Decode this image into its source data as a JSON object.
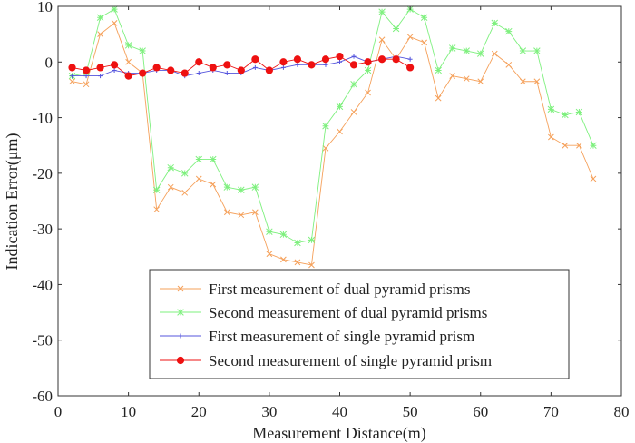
{
  "chart_data": {
    "type": "line",
    "title": "",
    "xlabel": "Measurement Distance(m)",
    "ylabel": "Indication Error(μm)",
    "xlim": [
      0,
      80
    ],
    "ylim": [
      -60,
      10
    ],
    "x_ticks": [
      0,
      10,
      20,
      30,
      40,
      50,
      60,
      70,
      80
    ],
    "y_ticks": [
      10,
      0,
      -10,
      -20,
      -30,
      -40,
      -50,
      -60
    ],
    "x_tick_labels": [
      "0",
      "10",
      "20",
      "30",
      "40",
      "50",
      "60",
      "70",
      "80"
    ],
    "y_tick_labels": [
      "10",
      "0",
      "-10",
      "-20",
      "-30",
      "-40",
      "-50",
      "-60"
    ],
    "grid": false,
    "legend_position": "bottom-center",
    "series": [
      {
        "name": "First measurement of dual pyramid prisms",
        "color": "#f5a05a",
        "marker": "x",
        "x": [
          2,
          4,
          6,
          8,
          10,
          12,
          14,
          16,
          18,
          20,
          22,
          24,
          26,
          28,
          30,
          32,
          34,
          36,
          38,
          40,
          42,
          44,
          46,
          48,
          50,
          52,
          54,
          56,
          58,
          60,
          62,
          64,
          66,
          68,
          70,
          72,
          74,
          76
        ],
        "y": [
          -3.5,
          -4,
          5,
          7,
          0,
          -2,
          -26.5,
          -22.5,
          -23.5,
          -21,
          -22,
          -27,
          -27.5,
          -27,
          -34.5,
          -35.5,
          -36,
          -36.5,
          -15.5,
          -12.5,
          -9,
          -5.5,
          4,
          0.5,
          4.5,
          3.5,
          -6.5,
          -2.5,
          -3,
          -3.5,
          1.5,
          -0.5,
          -3.5,
          -3.5,
          -13.5,
          -15,
          -15,
          -21
        ]
      },
      {
        "name": "Second measurement of dual pyramid prisms",
        "color": "#7ef07e",
        "marker": "*",
        "x": [
          2,
          4,
          6,
          8,
          10,
          12,
          14,
          16,
          18,
          20,
          22,
          24,
          26,
          28,
          30,
          32,
          34,
          36,
          38,
          40,
          42,
          44,
          46,
          48,
          50,
          52,
          54,
          56,
          58,
          60,
          62,
          64,
          66,
          68,
          70,
          72,
          74,
          76
        ],
        "y": [
          -2.5,
          -2,
          8,
          9.5,
          3,
          2,
          -23,
          -19,
          -20,
          -17.5,
          -17.5,
          -22.5,
          -23,
          -22.5,
          -30.5,
          -31,
          -32.5,
          -32,
          -11.5,
          -8,
          -4,
          -1.5,
          9,
          6,
          9.5,
          8,
          -1.5,
          2.5,
          2,
          1.5,
          7,
          5.5,
          2,
          2,
          -8.5,
          -9.5,
          -9,
          -15
        ]
      },
      {
        "name": "First measurement of single pyramid prism",
        "color": "#5555dd",
        "marker": "+",
        "x": [
          2,
          4,
          6,
          8,
          10,
          12,
          14,
          16,
          18,
          20,
          22,
          24,
          26,
          28,
          30,
          32,
          34,
          36,
          38,
          40,
          42,
          44,
          46,
          48,
          50
        ],
        "y": [
          -2.5,
          -2.5,
          -2.5,
          -1.5,
          -2,
          -2,
          -1.5,
          -1.5,
          -2.5,
          -2,
          -1.5,
          -2,
          -2,
          -1,
          -1.5,
          -1,
          -0.5,
          -0.5,
          -0.5,
          0,
          1,
          0,
          0.5,
          1,
          0.5
        ]
      },
      {
        "name": "Second measurement of single pyramid prism",
        "color": "#ee1111",
        "marker": "o",
        "x": [
          2,
          4,
          6,
          8,
          10,
          12,
          14,
          16,
          18,
          20,
          22,
          24,
          26,
          28,
          30,
          32,
          34,
          36,
          38,
          40,
          42,
          44,
          46,
          48,
          50
        ],
        "y": [
          -1,
          -1.5,
          -1,
          -0.5,
          -2.5,
          -2,
          -1,
          -1.5,
          -2,
          0,
          -1,
          -0.5,
          -1.5,
          0.5,
          -1.5,
          0,
          0.5,
          -0.5,
          0.5,
          1,
          -0.5,
          0,
          0.5,
          0.5,
          -1
        ]
      }
    ]
  }
}
